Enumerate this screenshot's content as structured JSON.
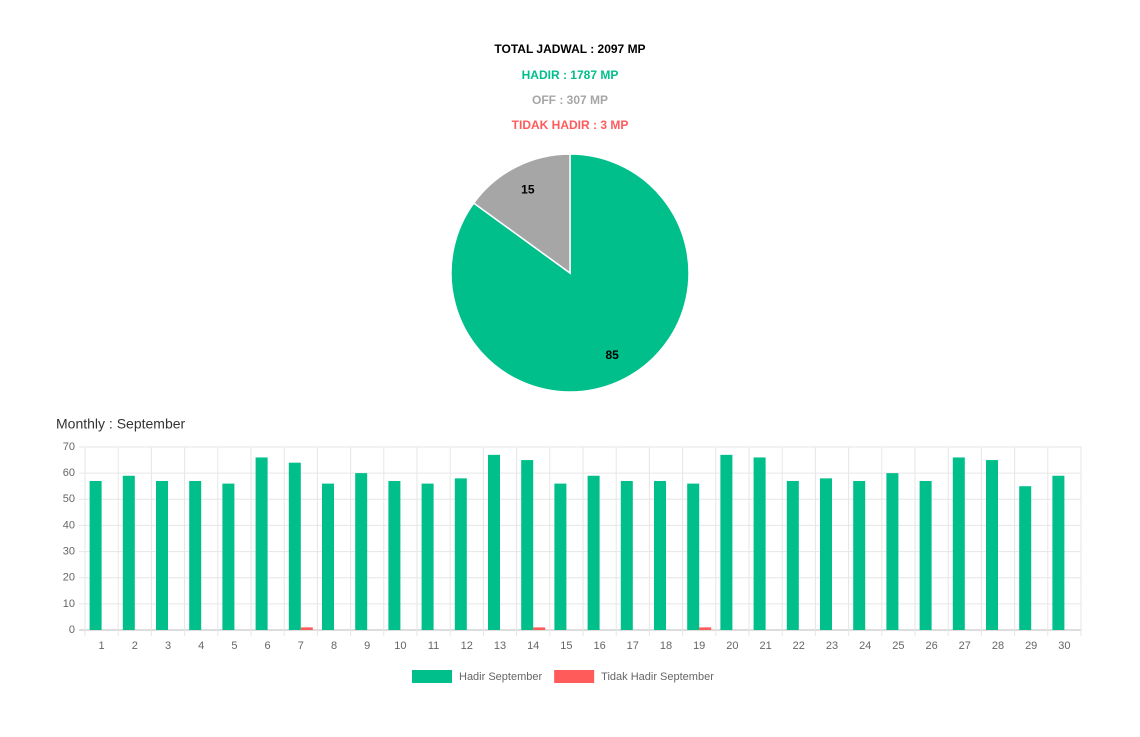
{
  "chart_data": [
    {
      "type": "pie",
      "title": "TOTAL JADWAL : 2097 MP",
      "subtitles": [
        "HADIR : 1787 MP",
        "OFF : 307 MP",
        "TIDAK HADIR : 3 MP"
      ],
      "subtitle_colors": [
        "#00bf8a",
        "#a6a6a6",
        "#ff5b5b"
      ],
      "values": [
        85,
        15
      ],
      "colors": [
        "#00bf8a",
        "#a6a6a6"
      ]
    },
    {
      "type": "bar",
      "title": "Monthly : September",
      "categories": [
        "1",
        "2",
        "3",
        "4",
        "5",
        "6",
        "7",
        "8",
        "9",
        "10",
        "11",
        "12",
        "13",
        "14",
        "15",
        "16",
        "17",
        "18",
        "19",
        "20",
        "21",
        "22",
        "23",
        "24",
        "25",
        "26",
        "27",
        "28",
        "29",
        "30"
      ],
      "series": [
        {
          "name": "Hadir September",
          "color": "#00bf8a",
          "values": [
            57,
            59,
            57,
            57,
            56,
            66,
            64,
            56,
            60,
            57,
            56,
            58,
            67,
            65,
            56,
            59,
            57,
            57,
            56,
            67,
            66,
            57,
            58,
            57,
            60,
            57,
            66,
            65,
            55,
            59
          ]
        },
        {
          "name": "Tidak Hadir September",
          "color": "#ff5b5b",
          "values": [
            0,
            0,
            0,
            0,
            0,
            0,
            1,
            0,
            0,
            0,
            0,
            0,
            0,
            1,
            0,
            0,
            0,
            0,
            1,
            0,
            0,
            0,
            0,
            0,
            0,
            0,
            0,
            0,
            0,
            0
          ]
        }
      ],
      "ylim": [
        0,
        70
      ],
      "yticks": [
        0,
        10,
        20,
        30,
        40,
        50,
        60,
        70
      ],
      "grid": true,
      "legend": "bottom"
    }
  ]
}
